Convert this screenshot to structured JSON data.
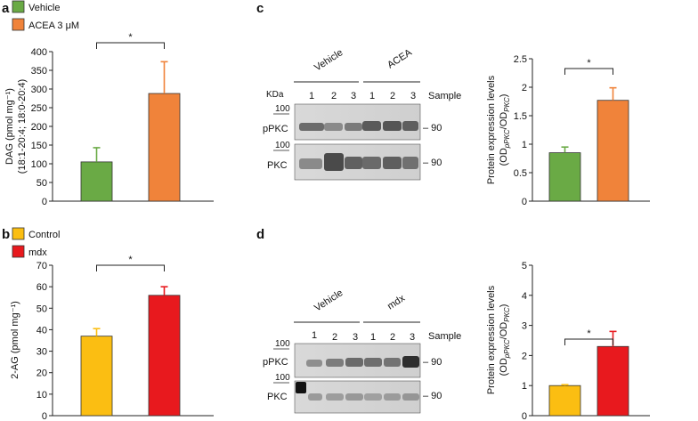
{
  "panel_letters": {
    "a": "a",
    "b": "b",
    "c": "c",
    "d": "d"
  },
  "chart_data": [
    {
      "panel": "a",
      "type": "bar",
      "categories": [
        "Vehicle",
        "ACEA 3 μM"
      ],
      "values": [
        105,
        288
      ],
      "errors": [
        38,
        85
      ],
      "colors": [
        "#6aaa45",
        "#f0833a"
      ],
      "legend": [
        "Vehicle",
        "ACEA 3 μM"
      ],
      "ylabel_line1": "DAG (pmol mg⁻¹)",
      "ylabel_line2": "(18:1-20:4; 18:0-20:4)",
      "ylim": [
        0,
        400
      ],
      "yticks": [
        "0",
        "50",
        "100",
        "150",
        "200",
        "250",
        "300",
        "350",
        "400"
      ],
      "significance": "*"
    },
    {
      "panel": "b",
      "type": "bar",
      "categories": [
        "Control",
        "mdx"
      ],
      "values": [
        37,
        56
      ],
      "errors": [
        3.5,
        4
      ],
      "colors": [
        "#fbbe12",
        "#e8191e"
      ],
      "legend": [
        "Control",
        "mdx"
      ],
      "ylabel_line1": "2-AG (pmol mg⁻¹)",
      "ylim": [
        0,
        70
      ],
      "yticks": [
        "0",
        "10",
        "20",
        "30",
        "40",
        "50",
        "60",
        "70"
      ],
      "significance": "*"
    },
    {
      "panel": "c",
      "type": "bar",
      "categories": [
        "Vehicle",
        "ACEA"
      ],
      "values": [
        0.85,
        1.77
      ],
      "errors": [
        0.1,
        0.22
      ],
      "colors": [
        "#6aaa45",
        "#f0833a"
      ],
      "ylabel_line1": "Protein expression levels",
      "ylabel_line2": "(OD",
      "ylabel_sub1": "pPKC",
      "ylabel_slash": "/OD",
      "ylabel_sub2": "PKC",
      "ylabel_close": ")",
      "ylim": [
        0,
        2.5
      ],
      "yticks": [
        "0",
        "0.5",
        "1",
        "1.5",
        "2",
        "2.5"
      ],
      "significance": "*"
    },
    {
      "panel": "d",
      "type": "bar",
      "categories": [
        "Control",
        "mdx"
      ],
      "values": [
        1.0,
        2.3
      ],
      "errors": [
        0.03,
        0.5
      ],
      "colors": [
        "#fbbe12",
        "#e8191e"
      ],
      "ylabel_line1": "Protein expression levels",
      "ylabel_line2": "(OD",
      "ylabel_sub1": "pPKC",
      "ylabel_slash": "/OD",
      "ylabel_sub2": "PKC",
      "ylabel_close": ")",
      "ylim": [
        0,
        5
      ],
      "yticks": [
        "0",
        "1",
        "2",
        "3",
        "4",
        "5"
      ],
      "significance": "*"
    }
  ],
  "blot_c": {
    "group_left": "Vehicle",
    "group_right": "ACEA",
    "kda": "KDa",
    "lanes": [
      "1",
      "2",
      "3",
      "1",
      "2",
      "3"
    ],
    "sample": "Sample",
    "marker": "100",
    "row1_label": "pPKC",
    "row2_label": "PKC",
    "size": "– 90"
  },
  "blot_d": {
    "group_left": "Vehicle",
    "group_right": "mdx",
    "lanes": [
      "1",
      "2",
      "3",
      "1",
      "2",
      "3"
    ],
    "sample": "Sample",
    "marker": "100",
    "row1_label": "pPKC",
    "row2_label": "PKC",
    "size": "– 90"
  }
}
